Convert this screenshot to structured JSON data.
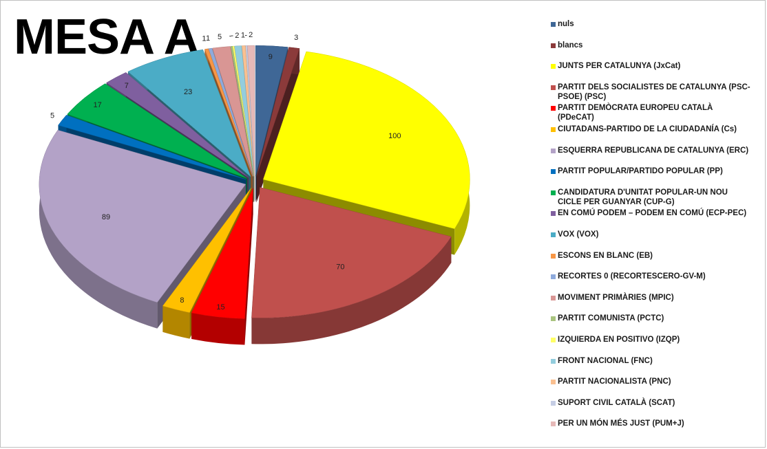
{
  "title": "MESA A",
  "chart_data": {
    "type": "pie",
    "variant": "3d-exploded",
    "start": "top",
    "direction": "clockwise",
    "legend_position": "right",
    "categories": [
      "nuls",
      "blancs",
      "JUNTS PER CATALUNYA (JxCat)",
      "PARTIT DELS SOCIALISTES DE CATALUNYA (PSC-PSOE) (PSC)",
      "PARTIT DEMÒCRATA EUROPEU CATALÀ (PDeCAT)",
      "CIUTADANS-PARTIDO DE LA CIUDADANÍA (Cs)",
      "ESQUERRA REPUBLICANA DE CATALUNYA (ERC)",
      "PARTIT POPULAR/PARTIDO POPULAR (PP)",
      "CANDIDATURA D'UNITAT POPULAR-UN NOU CICLE PER GUANYAR (CUP-G)",
      "EN COMÚ PODEM – PODEM EN COMÚ (ECP-PEC)",
      "VOX (VOX)",
      "ESCONS EN BLANC (EB)",
      "RECORTES 0 (RECORTESCERO-GV-M)",
      "MOVIMENT PRIMÀRIES (MPIC)",
      "PARTIT COMUNISTA (PCTC)",
      "IZQUIERDA EN POSITIVO (IZQP)",
      "FRONT NACIONAL  (FNC)",
      "PARTIT NACIONALISTA (PNC)",
      "SUPORT CIVIL CATALÀ (SCAT)",
      "PER UN MÓN MÉS JUST (PUM+J)"
    ],
    "values": [
      9,
      3,
      100,
      70,
      15,
      8,
      89,
      5,
      17,
      7,
      23,
      1,
      1,
      5,
      0,
      0,
      2,
      1,
      0,
      2
    ],
    "data_labels": [
      "9",
      "3",
      "100",
      "70",
      "15",
      "8",
      "89",
      "5",
      "17",
      "7",
      "23",
      "1",
      "1",
      "5",
      "-",
      "-",
      "2",
      "1",
      "-",
      "2"
    ],
    "colors": [
      "#3f6796",
      "#8b3a3a",
      "#ffff00",
      "#c0504d",
      "#ff0000",
      "#ffc000",
      "#b3a2c7",
      "#0070c0",
      "#00b050",
      "#7f5f9f",
      "#4bacc6",
      "#f79646",
      "#8eaadc",
      "#d99694",
      "#a9c47f",
      "#ffff66",
      "#93cddd",
      "#fac090",
      "#c5cde4",
      "#e6b9b8"
    ]
  }
}
